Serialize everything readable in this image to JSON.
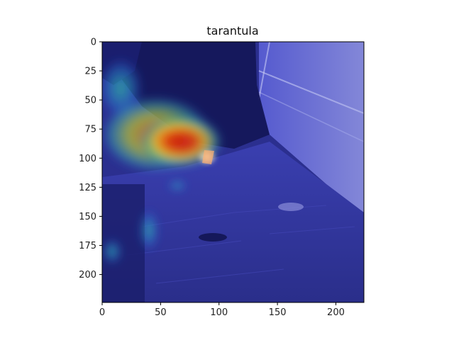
{
  "title": "tarantula",
  "image": {
    "width": 224,
    "height": 224,
    "description_colormap": "jet",
    "base_colors": {
      "dark_bg": "#1b1f63",
      "overlay": "#3b3fc4"
    }
  },
  "axes": {
    "x": {
      "range": [
        0,
        224
      ],
      "ticks": [
        0,
        50,
        100,
        150,
        200
      ],
      "tick_labels": [
        "0",
        "50",
        "100",
        "150",
        "200"
      ]
    },
    "y": {
      "range": [
        0,
        224
      ],
      "ticks": [
        0,
        25,
        50,
        75,
        100,
        125,
        150,
        175,
        200
      ],
      "tick_labels": [
        "0",
        "25",
        "50",
        "75",
        "100",
        "125",
        "150",
        "175",
        "200"
      ]
    }
  },
  "heatmap_blobs": [
    {
      "x": 70,
      "y": 88,
      "intensity": 1.0,
      "spread": 28
    },
    {
      "x": 40,
      "y": 80,
      "intensity": 0.8,
      "spread": 22
    },
    {
      "x": 85,
      "y": 100,
      "intensity": 0.9,
      "spread": 10
    },
    {
      "x": 15,
      "y": 50,
      "intensity": 0.5,
      "spread": 18
    },
    {
      "x": 40,
      "y": 160,
      "intensity": 0.4,
      "spread": 12
    },
    {
      "x": 8,
      "y": 180,
      "intensity": 0.4,
      "spread": 10
    }
  ]
}
